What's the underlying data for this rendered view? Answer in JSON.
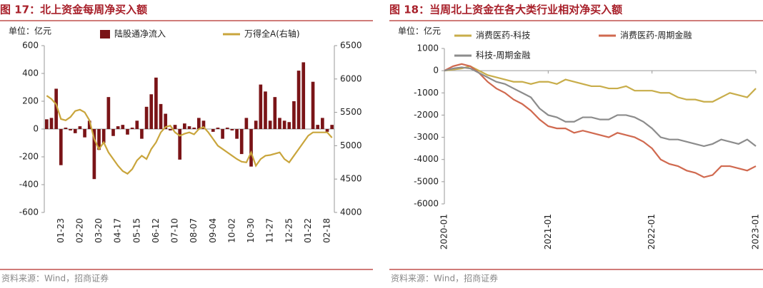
{
  "chart_data": [
    {
      "type": "bar",
      "title": "图 17：北上资金每周净买入额",
      "unit_label": "单位：亿元",
      "source": "资料来源：Wind，招商证券",
      "categories": [
        null,
        null,
        null,
        "01-23",
        null,
        null,
        null,
        "02-20",
        null,
        null,
        null,
        "03-20",
        null,
        null,
        null,
        "04-17",
        null,
        null,
        null,
        "05-15",
        null,
        null,
        null,
        "06-12",
        null,
        null,
        null,
        "07-10",
        null,
        null,
        null,
        "08-07",
        null,
        null,
        null,
        "09-04",
        null,
        null,
        null,
        "10-02",
        null,
        null,
        null,
        "10-30",
        null,
        null,
        null,
        "11-27",
        null,
        null,
        null,
        "12-25",
        null,
        null,
        null,
        "01-22",
        null,
        null,
        null,
        "02-18",
        null
      ],
      "series": [
        {
          "name": "陆股通净流入",
          "type": "bar",
          "color": "#7a1417",
          "values": [
            70,
            80,
            290,
            -260,
            10,
            -10,
            -30,
            20,
            -60,
            60,
            -360,
            -150,
            -100,
            230,
            -50,
            20,
            30,
            -40,
            10,
            60,
            -70,
            160,
            250,
            370,
            180,
            110,
            -10,
            30,
            -220,
            40,
            20,
            10,
            80,
            60,
            0,
            -20,
            10,
            -70,
            10,
            -10,
            -70,
            -180,
            80,
            -270,
            60,
            320,
            270,
            60,
            230,
            80,
            60,
            50,
            200,
            420,
            480,
            0,
            340,
            30,
            80,
            -20,
            30
          ]
        },
        {
          "name": "万得全A(右轴)",
          "type": "line",
          "axis": "y2",
          "color": "#c9a53c",
          "values": [
            5750,
            5700,
            5620,
            5400,
            5380,
            5430,
            5520,
            5540,
            5500,
            5380,
            5100,
            4950,
            5050,
            4900,
            4800,
            4700,
            4620,
            4580,
            4650,
            4780,
            4850,
            4800,
            4950,
            5050,
            5200,
            5280,
            5300,
            5200,
            5150,
            5180,
            5200,
            5170,
            5250,
            5280,
            5200,
            5100,
            5000,
            4950,
            4900,
            4850,
            4800,
            4760,
            4750,
            4900,
            4700,
            4800,
            4850,
            4860,
            4880,
            4900,
            4800,
            4750,
            4850,
            4950,
            5050,
            5150,
            5200,
            5200,
            5200,
            5200,
            5120
          ]
        }
      ],
      "ylim": [
        -600,
        600
      ],
      "yticks": [
        600,
        400,
        200,
        0,
        -200,
        -400,
        -600
      ],
      "y2lim": [
        4000,
        6500
      ],
      "y2ticks": [
        6500,
        6000,
        5500,
        5000,
        4500,
        4000
      ]
    },
    {
      "type": "line",
      "title": "图 18：当周北上资金在各大类行业相对净买入额",
      "unit_label": "单位：亿元",
      "source": "资料来源：Wind，招商证券",
      "x": [
        "2020-01",
        "2020-02",
        "2020-03",
        "2020-04",
        "2020-05",
        "2020-06",
        "2020-07",
        "2020-08",
        "2020-09",
        "2020-10",
        "2020-11",
        "2020-12",
        "2021-01",
        "2021-02",
        "2021-03",
        "2021-04",
        "2021-05",
        "2021-06",
        "2021-07",
        "2021-08",
        "2021-09",
        "2021-10",
        "2021-11",
        "2021-12",
        "2022-01",
        "2022-02",
        "2022-03",
        "2022-04",
        "2022-05",
        "2022-06",
        "2022-07",
        "2022-08",
        "2022-09",
        "2022-10",
        "2022-11",
        "2022-12",
        "2023-01"
      ],
      "xticks": [
        "2020-01",
        "2021-01",
        "2022-01",
        "2023-01"
      ],
      "series": [
        {
          "name": "消费医药-科技",
          "color": "#c8ad4a",
          "values": [
            0,
            50,
            100,
            200,
            0,
            -200,
            -300,
            -400,
            -500,
            -500,
            -600,
            -500,
            -500,
            -600,
            -400,
            -500,
            -600,
            -700,
            -700,
            -800,
            -800,
            -700,
            -900,
            -900,
            -900,
            -1000,
            -1000,
            -1200,
            -1300,
            -1300,
            -1400,
            -1400,
            -1200,
            -1000,
            -1100,
            -1200,
            -800
          ]
        },
        {
          "name": "消费医药-周期金融",
          "color": "#d0694f",
          "values": [
            0,
            200,
            300,
            200,
            -100,
            -500,
            -800,
            -1000,
            -1300,
            -1500,
            -1800,
            -2200,
            -2500,
            -2600,
            -2600,
            -2800,
            -2700,
            -2800,
            -2900,
            -3000,
            -2800,
            -2900,
            -3000,
            -3200,
            -3500,
            -4000,
            -4200,
            -4300,
            -4500,
            -4600,
            -4800,
            -4700,
            -4300,
            -4300,
            -4400,
            -4500,
            -4300
          ]
        },
        {
          "name": "科技-周期金融",
          "color": "#8c8c8c",
          "values": [
            0,
            100,
            150,
            100,
            -100,
            -300,
            -500,
            -600,
            -800,
            -1000,
            -1200,
            -1700,
            -2000,
            -2100,
            -2300,
            -2300,
            -2100,
            -2100,
            -2200,
            -2200,
            -2000,
            -2000,
            -2100,
            -2300,
            -2600,
            -3000,
            -3100,
            -3100,
            -3200,
            -3300,
            -3400,
            -3300,
            -3100,
            -3200,
            -3300,
            -3100,
            -3400
          ]
        }
      ],
      "ylim": [
        -6000,
        1000
      ],
      "yticks": [
        1000,
        0,
        -1000,
        -2000,
        -3000,
        -4000,
        -5000,
        -6000
      ]
    }
  ]
}
